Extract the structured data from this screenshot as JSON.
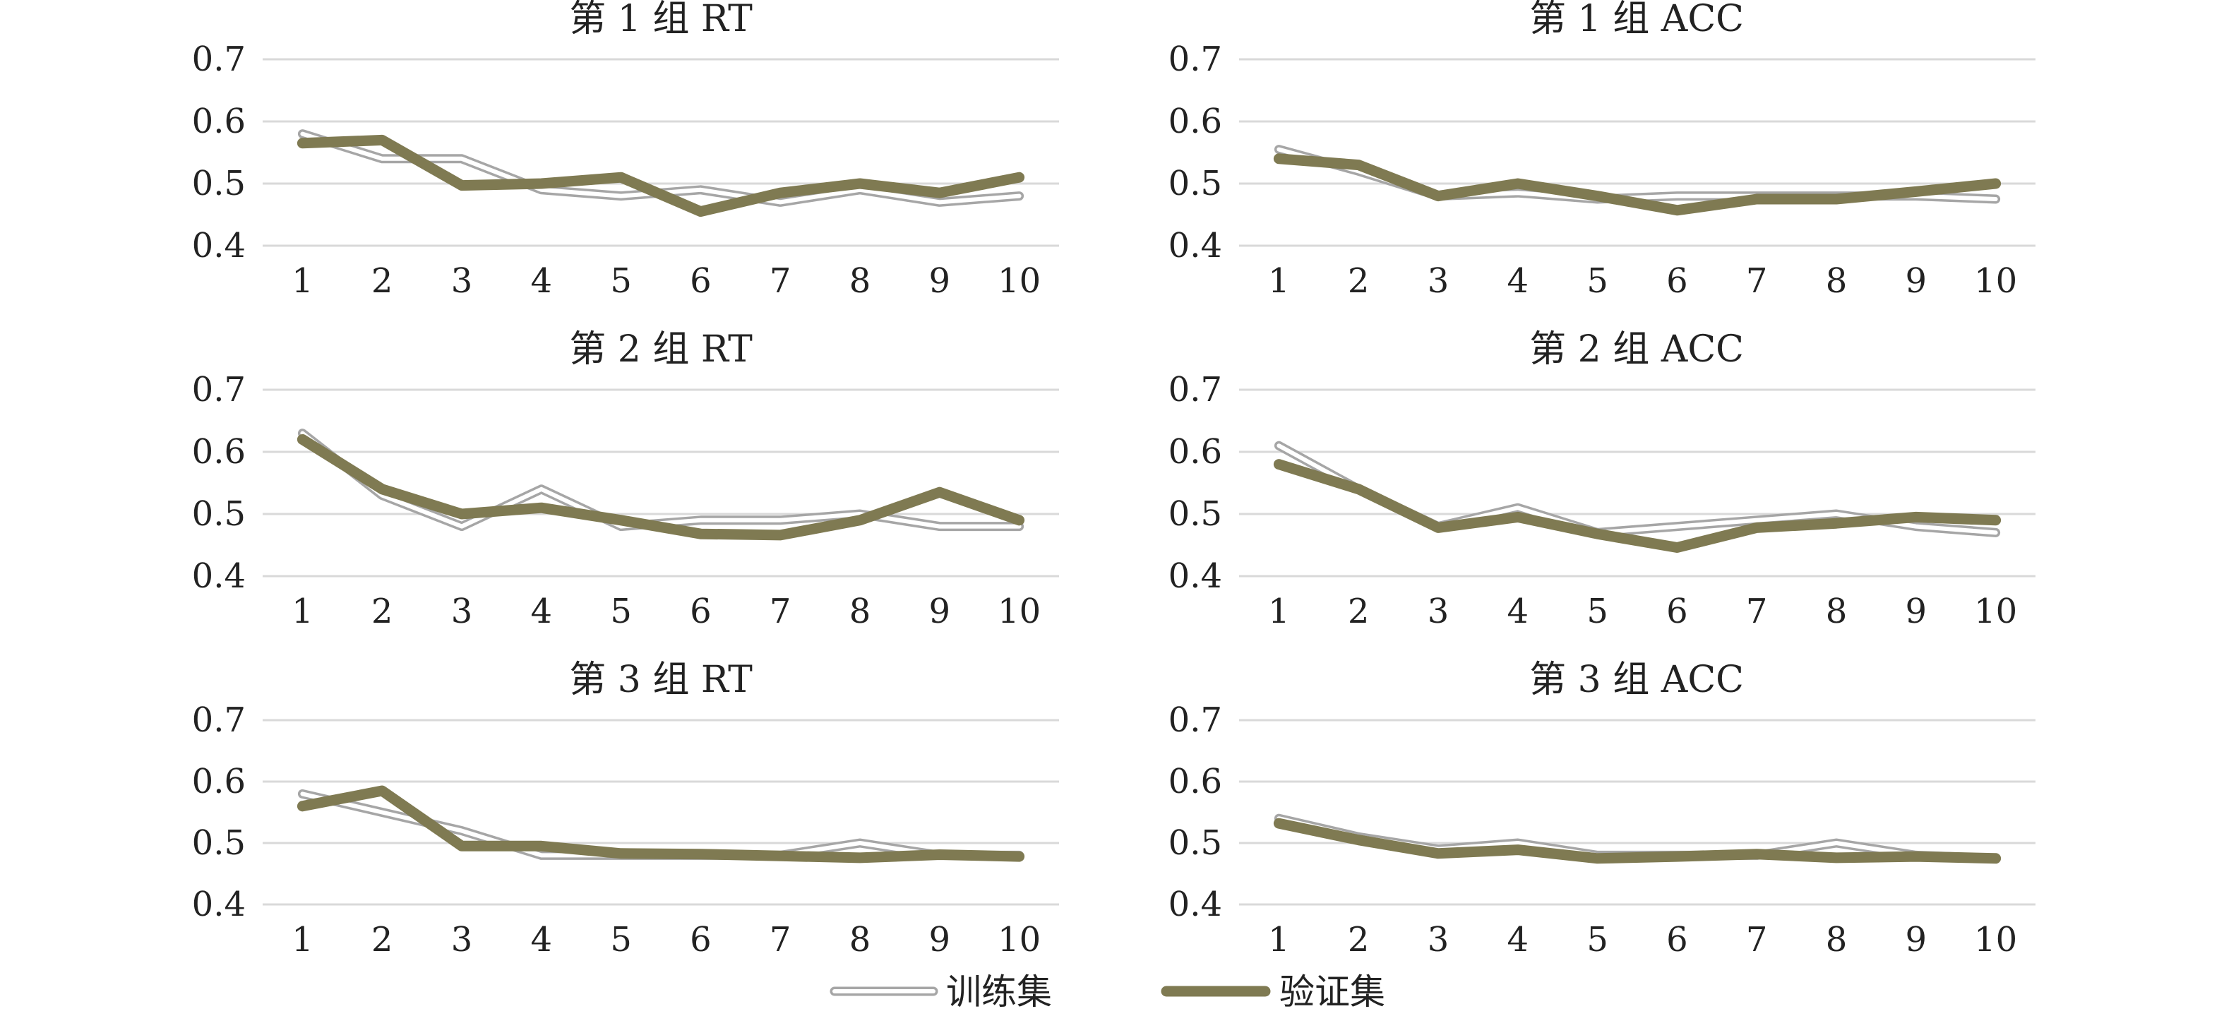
{
  "legend": {
    "train_label": "训练集",
    "valid_label": "验证集"
  },
  "colors": {
    "train": "#a6a6a6",
    "valid": "#7f7a52",
    "grid": "#d9d9d9",
    "text": "#222222"
  },
  "chart_data": [
    {
      "type": "line",
      "title": "第 1 组 RT",
      "x": [
        1,
        2,
        3,
        4,
        5,
        6,
        7,
        8,
        9,
        10
      ],
      "ylim": [
        0.4,
        0.7
      ],
      "yticks": [
        "0.4",
        "0.5",
        "0.6",
        "0.7"
      ],
      "grid": true,
      "series": [
        {
          "name": "训练集",
          "values": [
            0.58,
            0.54,
            0.54,
            0.49,
            0.48,
            0.49,
            0.47,
            0.49,
            0.47,
            0.48
          ]
        },
        {
          "name": "验证集",
          "values": [
            0.565,
            0.57,
            0.497,
            0.5,
            0.51,
            0.455,
            0.485,
            0.5,
            0.485,
            0.51
          ]
        }
      ]
    },
    {
      "type": "line",
      "title": "第 1 组 ACC",
      "x": [
        1,
        2,
        3,
        4,
        5,
        6,
        7,
        8,
        9,
        10
      ],
      "ylim": [
        0.4,
        0.7
      ],
      "yticks": [
        "0.4",
        "0.5",
        "0.6",
        "0.7"
      ],
      "grid": true,
      "series": [
        {
          "name": "训练集",
          "values": [
            0.555,
            0.52,
            0.48,
            0.485,
            0.475,
            0.48,
            0.48,
            0.48,
            0.48,
            0.475
          ]
        },
        {
          "name": "验证集",
          "values": [
            0.54,
            0.53,
            0.48,
            0.5,
            0.48,
            0.457,
            0.475,
            0.475,
            0.487,
            0.5
          ]
        }
      ]
    },
    {
      "type": "line",
      "title": "第 2 组 RT",
      "x": [
        1,
        2,
        3,
        4,
        5,
        6,
        7,
        8,
        9,
        10
      ],
      "ylim": [
        0.4,
        0.7
      ],
      "yticks": [
        "0.4",
        "0.5",
        "0.6",
        "0.7"
      ],
      "grid": true,
      "series": [
        {
          "name": "训练集",
          "values": [
            0.63,
            0.53,
            0.48,
            0.54,
            0.48,
            0.49,
            0.49,
            0.5,
            0.48,
            0.48
          ]
        },
        {
          "name": "验证集",
          "values": [
            0.62,
            0.54,
            0.5,
            0.51,
            0.49,
            0.468,
            0.466,
            0.49,
            0.535,
            0.49
          ]
        }
      ]
    },
    {
      "type": "line",
      "title": "第 2 组 ACC",
      "x": [
        1,
        2,
        3,
        4,
        5,
        6,
        7,
        8,
        9,
        10
      ],
      "ylim": [
        0.4,
        0.7
      ],
      "yticks": [
        "0.4",
        "0.5",
        "0.6",
        "0.7"
      ],
      "grid": true,
      "series": [
        {
          "name": "训练集",
          "values": [
            0.61,
            0.54,
            0.48,
            0.51,
            0.47,
            0.48,
            0.49,
            0.5,
            0.48,
            0.47
          ]
        },
        {
          "name": "验证集",
          "values": [
            0.58,
            0.54,
            0.478,
            0.495,
            0.468,
            0.446,
            0.478,
            0.485,
            0.495,
            0.49
          ]
        }
      ]
    },
    {
      "type": "line",
      "title": "第 3 组 RT",
      "x": [
        1,
        2,
        3,
        4,
        5,
        6,
        7,
        8,
        9,
        10
      ],
      "ylim": [
        0.4,
        0.7
      ],
      "yticks": [
        "0.4",
        "0.5",
        "0.6",
        "0.7"
      ],
      "grid": true,
      "series": [
        {
          "name": "训练集",
          "values": [
            0.58,
            0.55,
            0.52,
            0.48,
            0.48,
            0.48,
            0.48,
            0.5,
            0.48,
            0.48
          ]
        },
        {
          "name": "验证集",
          "values": [
            0.56,
            0.585,
            0.495,
            0.495,
            0.483,
            0.482,
            0.479,
            0.476,
            0.481,
            0.478
          ]
        }
      ]
    },
    {
      "type": "line",
      "title": "第 3 组 ACC",
      "x": [
        1,
        2,
        3,
        4,
        5,
        6,
        7,
        8,
        9,
        10
      ],
      "ylim": [
        0.4,
        0.7
      ],
      "yticks": [
        "0.4",
        "0.5",
        "0.6",
        "0.7"
      ],
      "grid": true,
      "series": [
        {
          "name": "训练集",
          "values": [
            0.54,
            0.51,
            0.49,
            0.5,
            0.48,
            0.48,
            0.48,
            0.5,
            0.48,
            0.475
          ]
        },
        {
          "name": "验证集",
          "values": [
            0.532,
            0.505,
            0.483,
            0.489,
            0.475,
            0.478,
            0.482,
            0.476,
            0.478,
            0.475
          ]
        }
      ]
    }
  ]
}
